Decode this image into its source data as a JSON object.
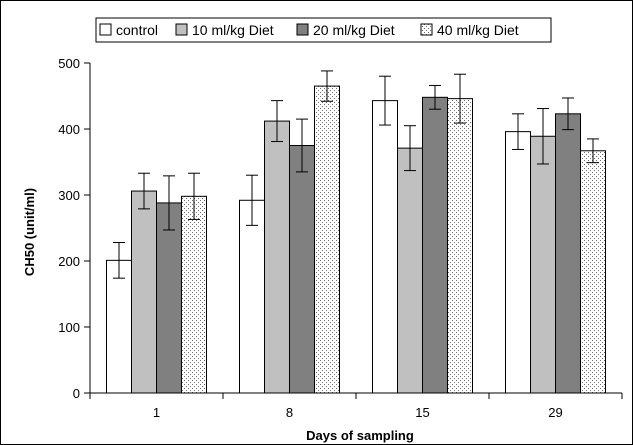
{
  "chart_data": {
    "type": "bar",
    "title": "",
    "xlabel": "Days of sampling",
    "ylabel": "CH50 (unit/ml)",
    "categories": [
      "1",
      "8",
      "15",
      "29"
    ],
    "ylim": [
      0,
      500
    ],
    "yticks": [
      0,
      100,
      200,
      300,
      400,
      500
    ],
    "grid": false,
    "legend_position": "top",
    "series": [
      {
        "name": "control",
        "values": [
          201,
          292,
          443,
          396
        ],
        "errors": [
          27,
          38,
          37,
          27
        ],
        "pattern": "white"
      },
      {
        "name": "10 ml/kg Diet",
        "values": [
          306,
          412,
          371,
          389
        ],
        "errors": [
          27,
          31,
          34,
          42
        ],
        "pattern": "lightgray"
      },
      {
        "name": "20 ml/kg Diet",
        "values": [
          288,
          375,
          448,
          423
        ],
        "errors": [
          41,
          40,
          18,
          24
        ],
        "pattern": "darkgray"
      },
      {
        "name": "40 ml/kg Diet",
        "values": [
          298,
          465,
          446,
          367
        ],
        "errors": [
          35,
          23,
          37,
          18
        ],
        "pattern": "dotted"
      }
    ],
    "colors": {
      "control": "#ffffff",
      "10 ml/kg Diet": "#c0c0c0",
      "20 ml/kg Diet": "#808080",
      "40 ml/kg Diet": "#d0d0d0",
      "dots": "#6b6b6b"
    }
  }
}
